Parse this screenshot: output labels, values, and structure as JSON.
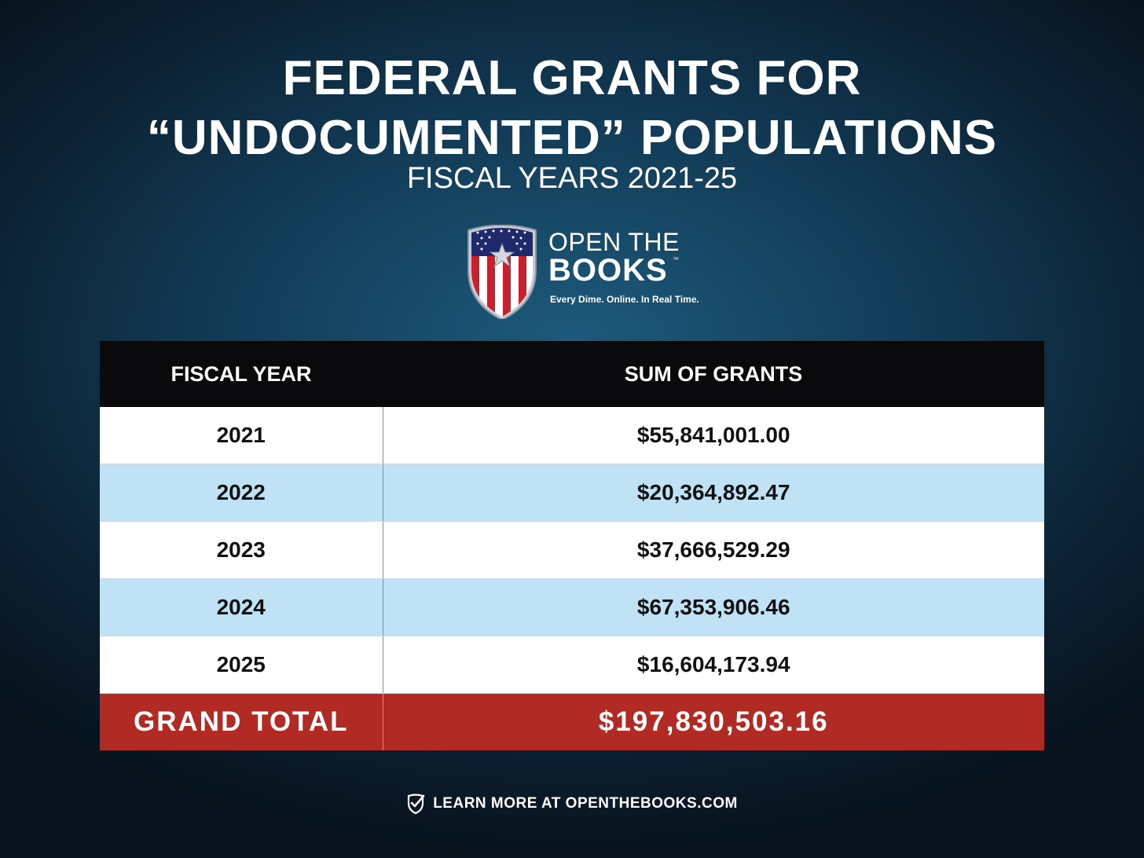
{
  "title_line1": "FEDERAL GRANTS FOR",
  "title_line2": "“UNDOCUMENTED” POPULATIONS",
  "subtitle": "FISCAL YEARS 2021-25",
  "logo": {
    "line1": "OPEN THE",
    "line2": "BOOKS",
    "trademark": "™",
    "tagline": "Every Dime. Online. In Real Time."
  },
  "chart_data": {
    "type": "table",
    "title": "FEDERAL GRANTS FOR “UNDOCUMENTED” POPULATIONS",
    "subtitle": "FISCAL YEARS 2021-25",
    "columns": [
      "FISCAL YEAR",
      "SUM OF GRANTS"
    ],
    "rows": [
      {
        "year": "2021",
        "sum": "$55,841,001.00",
        "value": 55841001.0
      },
      {
        "year": "2022",
        "sum": "$20,364,892.47",
        "value": 20364892.47
      },
      {
        "year": "2023",
        "sum": "$37,666,529.29",
        "value": 37666529.29
      },
      {
        "year": "2024",
        "sum": "$67,353,906.46",
        "value": 67353906.46
      },
      {
        "year": "2025",
        "sum": "$16,604,173.94",
        "value": 16604173.94
      }
    ],
    "total": {
      "label": "GRAND TOTAL",
      "sum": "$197,830,503.16",
      "value": 197830503.16
    }
  },
  "colors": {
    "header_bg": "#0a0a0d",
    "row_white": "#ffffff",
    "row_blue": "#bfe3f5",
    "total_red": "#b12a24"
  },
  "footer": {
    "icon": "shield-check-icon",
    "text": "LEARN MORE AT OPENTHEBOOKS.COM"
  }
}
